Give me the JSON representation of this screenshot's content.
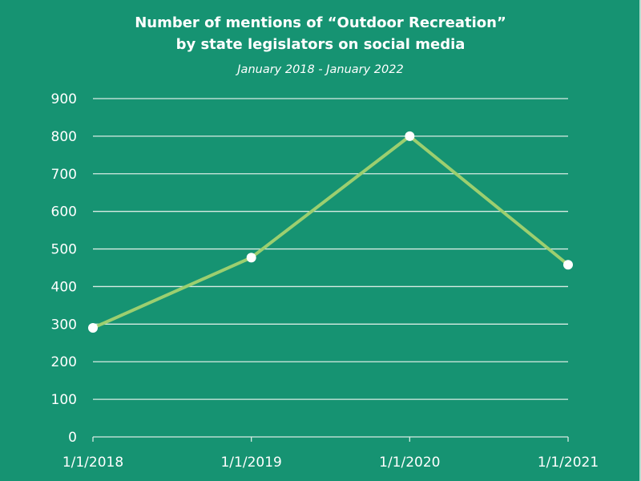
{
  "chart_data": {
    "type": "line",
    "title": "Number of mentions of “Outdoor Recreation”",
    "title_line2": "by state legislators on social media",
    "subtitle": "January 2018 - January 2022",
    "xlabel": "",
    "ylabel": "",
    "categories": [
      "1/1/2018",
      "1/1/2019",
      "1/1/2020",
      "1/1/2021"
    ],
    "series": [
      {
        "name": "Mentions",
        "values": [
          290,
          477,
          800,
          458
        ]
      }
    ],
    "ylim": [
      0,
      900
    ],
    "yticks": [
      "0",
      "100",
      "200",
      "300",
      "400",
      "500",
      "600",
      "700",
      "800",
      "900"
    ],
    "grid": true,
    "legend": "none"
  },
  "colors": {
    "background": "#169372",
    "line": "#9ccf6f",
    "marker": "#ffffff",
    "grid": "#d8ece4",
    "text": "#ffffff"
  }
}
